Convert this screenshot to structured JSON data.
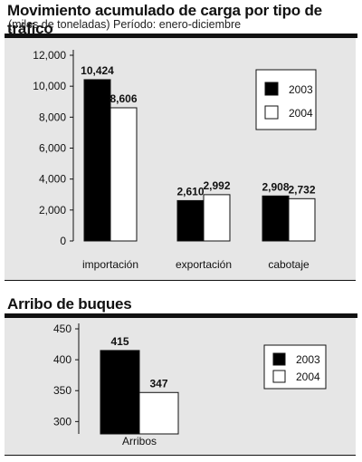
{
  "header1": {
    "title": "Movimiento acumulado de carga por tipo de tráfico",
    "subtitle": "(miles de toneladas) Período: enero-diciembre"
  },
  "header2": {
    "title": "Arribo de buques"
  },
  "colors": {
    "series_2003": "#000000",
    "series_2004": "#ffffff",
    "panel": "#e6e6e6"
  },
  "chart_data": [
    {
      "type": "bar",
      "categories": [
        "importación",
        "exportación",
        "cabotaje"
      ],
      "series": [
        {
          "name": "2003",
          "values": [
            10424,
            2610,
            2908
          ],
          "labels": [
            "10,424",
            "2,610",
            "2,908"
          ]
        },
        {
          "name": "2004",
          "values": [
            8606,
            2992,
            2732
          ],
          "labels": [
            "8,606",
            "2,992",
            "2,732"
          ]
        }
      ],
      "yticks": [
        "0",
        "2,000",
        "4,000",
        "6,000",
        "8,000",
        "10,000",
        "12,000"
      ],
      "ylim": [
        0,
        12000
      ],
      "grid": false,
      "legend": "right"
    },
    {
      "type": "bar",
      "categories": [
        "Arribos"
      ],
      "series": [
        {
          "name": "2003",
          "values": [
            415
          ],
          "labels": [
            "415"
          ]
        },
        {
          "name": "2004",
          "values": [
            347
          ],
          "labels": [
            "347"
          ]
        }
      ],
      "yticks": [
        "300",
        "350",
        "400",
        "450"
      ],
      "ylim": [
        280,
        450
      ],
      "grid": false,
      "legend": "right"
    }
  ]
}
